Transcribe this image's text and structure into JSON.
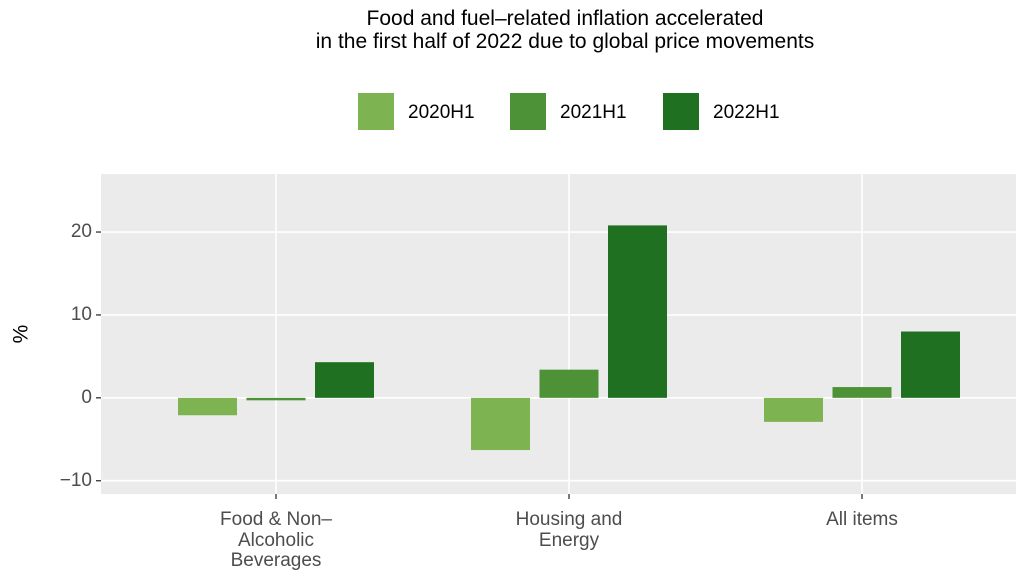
{
  "chart_data": {
    "type": "bar",
    "title": "Food and fuel–related inflation accelerated\nin the first half of 2022 due to global price movements",
    "y_label": "%",
    "categories": [
      "Food & Non–\nAlcoholic\nBeverages",
      "Housing and\nEnergy",
      "All items"
    ],
    "series": [
      {
        "name": "2020H1",
        "color": "#7db350",
        "values": [
          -2.1,
          -6.3,
          -2.9
        ]
      },
      {
        "name": "2021H1",
        "color": "#4e9238",
        "values": [
          -0.3,
          3.4,
          1.3
        ]
      },
      {
        "name": "2022H1",
        "color": "#1f7020",
        "values": [
          4.3,
          20.8,
          8.0
        ]
      }
    ],
    "ylim": [
      -11.6,
      27.0
    ],
    "yticks": [
      {
        "value": -10,
        "label": "−10"
      },
      0,
      10,
      20
    ],
    "grid": true,
    "legend": "top"
  }
}
